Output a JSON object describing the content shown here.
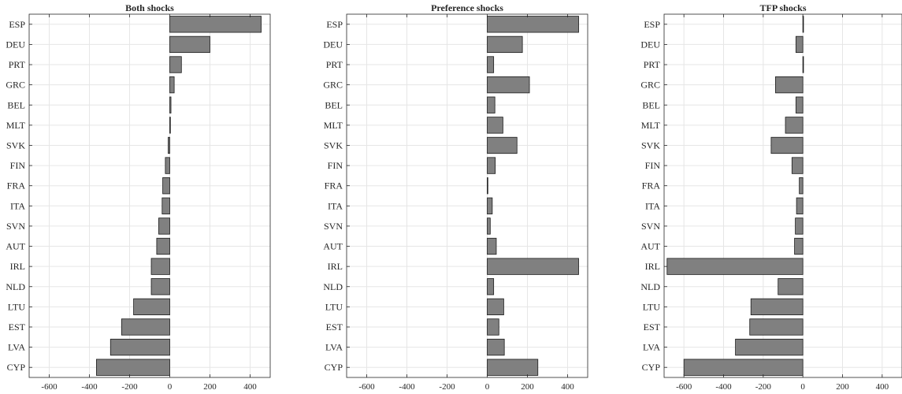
{
  "chart_data": [
    {
      "type": "bar",
      "orientation": "horizontal",
      "title": "Both shocks",
      "categories": [
        "ESP",
        "DEU",
        "PRT",
        "GRC",
        "BEL",
        "MLT",
        "SVK",
        "FIN",
        "FRA",
        "ITA",
        "SVN",
        "AUT",
        "IRL",
        "NLD",
        "LTU",
        "EST",
        "LVA",
        "CYP"
      ],
      "values": [
        455,
        200,
        58,
        22,
        6,
        2,
        -8,
        -22,
        -35,
        -38,
        -55,
        -65,
        -92,
        -92,
        -180,
        -240,
        -295,
        -365
      ],
      "xlim": [
        -700,
        500
      ],
      "xticks": [
        -600,
        -400,
        -200,
        0,
        200,
        400
      ],
      "grid": true,
      "bar_color": "#808080"
    },
    {
      "type": "bar",
      "orientation": "horizontal",
      "title": "Preference shocks",
      "categories": [
        "ESP",
        "DEU",
        "PRT",
        "GRC",
        "BEL",
        "MLT",
        "SVK",
        "FIN",
        "FRA",
        "ITA",
        "SVN",
        "AUT",
        "IRL",
        "NLD",
        "LTU",
        "EST",
        "LVA",
        "CYP"
      ],
      "values": [
        455,
        175,
        32,
        210,
        38,
        78,
        148,
        40,
        3,
        25,
        15,
        45,
        455,
        32,
        82,
        58,
        85,
        252
      ],
      "xlim": [
        -700,
        500
      ],
      "xticks": [
        -600,
        -400,
        -200,
        0,
        200,
        400
      ],
      "grid": true,
      "bar_color": "#808080"
    },
    {
      "type": "bar",
      "orientation": "horizontal",
      "title": "TFP shocks",
      "categories": [
        "ESP",
        "DEU",
        "PRT",
        "GRC",
        "BEL",
        "MLT",
        "SVK",
        "FIN",
        "FRA",
        "ITA",
        "SVN",
        "AUT",
        "IRL",
        "NLD",
        "LTU",
        "EST",
        "LVA",
        "CYP"
      ],
      "values": [
        3,
        -35,
        3,
        -138,
        -35,
        -88,
        -160,
        -55,
        -18,
        -32,
        -38,
        -42,
        -685,
        -125,
        -262,
        -268,
        -340,
        -600
      ],
      "xlim": [
        -700,
        500
      ],
      "xticks": [
        -600,
        -400,
        -200,
        0,
        200,
        400
      ],
      "grid": true,
      "bar_color": "#808080"
    }
  ]
}
